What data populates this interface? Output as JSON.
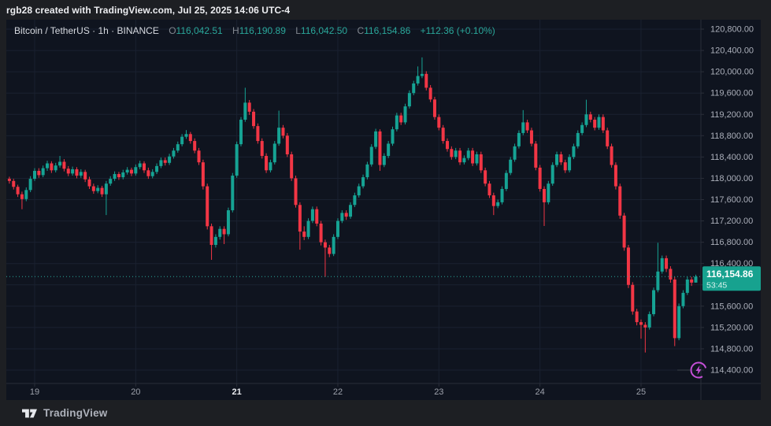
{
  "titlebar": {
    "text": "rgb28 created with TradingView.com, Jul 25, 2025 14:06 UTC-4"
  },
  "legend": {
    "symbol_line": "Bitcoin / TetherUS · 1h · BINANCE",
    "o_label": "O",
    "o_value": "116,042.51",
    "h_label": "H",
    "h_value": "116,190.89",
    "l_label": "L",
    "l_value": "116,042.50",
    "c_label": "C",
    "c_value": "116,154.86",
    "change": "+112.36 (+0.10%)"
  },
  "price_scale": {
    "last_price_label": "116,154.86",
    "countdown": "53:45"
  },
  "footer": {
    "logo_text": "TradingView"
  },
  "colors": {
    "panel_bg": "#0f141f",
    "frame_bg": "#1d1f23",
    "grid": "#1a2130",
    "separator": "#2a2e39",
    "axis_text": "#abafba",
    "day_text": "#9da1ab",
    "day_text_bold": "#e8eaef",
    "up": "#16a394",
    "down": "#f23645",
    "badge": "#17a28f",
    "badge_text": "#ffffff",
    "badge_sub_text": "#d9f3ee",
    "dotted_line": "#2aa89a",
    "lightning": "#c44fd6",
    "title_text": "#edeef1",
    "legend_value": "#2aa79a",
    "logo_text": "#aeb2bb"
  },
  "icons": {
    "lightning": "flash-bolt",
    "logo": "tradingview-mark"
  },
  "chart_data": {
    "type": "candlestick",
    "title": "Bitcoin / TetherUS",
    "exchange": "BINANCE",
    "interval": "1h",
    "timezone": "UTC-4",
    "ohlc_readout": {
      "open": 116042.51,
      "high": 116190.89,
      "low": 116042.5,
      "close": 116154.86
    },
    "change": 112.36,
    "change_pct": 0.1,
    "y_axis": {
      "min": 114400,
      "max": 120800,
      "step": 400
    },
    "x_axis": {
      "day_labels": [
        "19",
        "20",
        "21",
        "22",
        "23",
        "24",
        "25"
      ],
      "bold_label": "21",
      "hours_per_label": 24,
      "first_midnight_index": 6
    },
    "last": {
      "price": 116154.86,
      "countdown": "53:45"
    },
    "legend_position": "top-left",
    "grid": true,
    "candles": [
      [
        117990,
        118030,
        117900,
        117950
      ],
      [
        117950,
        117990,
        117790,
        117840
      ],
      [
        117840,
        117880,
        117650,
        117700
      ],
      [
        117700,
        117750,
        117420,
        117610
      ],
      [
        117610,
        117830,
        117570,
        117780
      ],
      [
        117780,
        118040,
        117740,
        117990
      ],
      [
        117990,
        118190,
        117950,
        118140
      ],
      [
        118140,
        118190,
        118010,
        118060
      ],
      [
        118060,
        118240,
        118020,
        118190
      ],
      [
        118190,
        118330,
        118140,
        118280
      ],
      [
        118280,
        118320,
        118100,
        118150
      ],
      [
        118150,
        118290,
        118110,
        118240
      ],
      [
        118240,
        118420,
        118200,
        118310
      ],
      [
        118310,
        118360,
        118130,
        118180
      ],
      [
        118180,
        118230,
        118040,
        118090
      ],
      [
        118090,
        118220,
        118050,
        118170
      ],
      [
        118170,
        118210,
        118000,
        118050
      ],
      [
        118050,
        118170,
        118010,
        118120
      ],
      [
        118120,
        118160,
        117930,
        117980
      ],
      [
        117980,
        118030,
        117800,
        117850
      ],
      [
        117850,
        117900,
        117710,
        117760
      ],
      [
        117760,
        117870,
        117720,
        117820
      ],
      [
        117820,
        117860,
        117650,
        117700
      ],
      [
        117700,
        117950,
        117310,
        117900
      ],
      [
        117900,
        118040,
        117860,
        117990
      ],
      [
        117990,
        118130,
        117950,
        118080
      ],
      [
        118080,
        118120,
        117970,
        118020
      ],
      [
        118020,
        118160,
        117980,
        118110
      ],
      [
        118110,
        118210,
        118070,
        118160
      ],
      [
        118160,
        118200,
        118040,
        118090
      ],
      [
        118090,
        118260,
        118050,
        118210
      ],
      [
        118210,
        118330,
        118170,
        118280
      ],
      [
        118280,
        118320,
        118100,
        118150
      ],
      [
        118150,
        118200,
        117990,
        118040
      ],
      [
        118040,
        118170,
        118000,
        118120
      ],
      [
        118120,
        118280,
        118080,
        118230
      ],
      [
        118230,
        118390,
        118190,
        118340
      ],
      [
        118340,
        118390,
        118240,
        118290
      ],
      [
        118290,
        118460,
        118250,
        118410
      ],
      [
        118410,
        118570,
        118370,
        118520
      ],
      [
        118520,
        118690,
        118480,
        118640
      ],
      [
        118640,
        118830,
        118600,
        118780
      ],
      [
        118780,
        118905,
        118740,
        118830
      ],
      [
        118830,
        118870,
        118650,
        118700
      ],
      [
        118700,
        118750,
        118470,
        118520
      ],
      [
        118520,
        118570,
        118250,
        118300
      ],
      [
        118300,
        118350,
        117790,
        117850
      ],
      [
        117850,
        117900,
        117040,
        117100
      ],
      [
        117100,
        117150,
        116470,
        116750
      ],
      [
        116750,
        116950,
        116700,
        116900
      ],
      [
        116900,
        117100,
        116850,
        117050
      ],
      [
        117050,
        117100,
        116765,
        116950
      ],
      [
        116950,
        117450,
        116910,
        117400
      ],
      [
        117400,
        118100,
        117360,
        118050
      ],
      [
        118050,
        118690,
        118010,
        118640
      ],
      [
        118640,
        119150,
        118600,
        119100
      ],
      [
        119100,
        119700,
        119060,
        119420
      ],
      [
        119420,
        119470,
        119190,
        119250
      ],
      [
        119250,
        119300,
        118930,
        118980
      ],
      [
        118980,
        119030,
        118650,
        118700
      ],
      [
        118700,
        118750,
        118370,
        118420
      ],
      [
        118420,
        118470,
        118100,
        118150
      ],
      [
        118150,
        118350,
        118110,
        118300
      ],
      [
        118300,
        118700,
        118260,
        118650
      ],
      [
        118650,
        119270,
        118610,
        118950
      ],
      [
        118950,
        119000,
        118750,
        118800
      ],
      [
        118800,
        118850,
        118400,
        118450
      ],
      [
        118450,
        118500,
        117950,
        118000
      ],
      [
        118000,
        118050,
        117450,
        117500
      ],
      [
        117500,
        117550,
        116660,
        117000
      ],
      [
        117000,
        117100,
        116840,
        116900
      ],
      [
        116900,
        117250,
        116860,
        117200
      ],
      [
        117200,
        117470,
        117160,
        117420
      ],
      [
        117420,
        117470,
        117100,
        117150
      ],
      [
        117150,
        117200,
        116740,
        116800
      ],
      [
        116800,
        116850,
        116150,
        116700
      ],
      [
        116700,
        116750,
        116520,
        116580
      ],
      [
        116580,
        116950,
        116540,
        116900
      ],
      [
        116900,
        117250,
        116860,
        117200
      ],
      [
        117200,
        117400,
        117160,
        117350
      ],
      [
        117350,
        117400,
        117220,
        117280
      ],
      [
        117280,
        117550,
        117240,
        117500
      ],
      [
        117500,
        117730,
        117460,
        117680
      ],
      [
        117680,
        117900,
        117640,
        117850
      ],
      [
        117850,
        118070,
        117810,
        118020
      ],
      [
        118020,
        118310,
        117980,
        118260
      ],
      [
        118260,
        118640,
        118220,
        118590
      ],
      [
        118590,
        118930,
        118550,
        118880
      ],
      [
        118880,
        118920,
        118140,
        118250
      ],
      [
        118250,
        118470,
        118210,
        118420
      ],
      [
        118420,
        118700,
        118380,
        118650
      ],
      [
        118650,
        118970,
        118610,
        118920
      ],
      [
        118920,
        119230,
        118880,
        119180
      ],
      [
        119180,
        119230,
        119000,
        119050
      ],
      [
        119050,
        119400,
        119010,
        119350
      ],
      [
        119350,
        119650,
        119310,
        119600
      ],
      [
        119600,
        119830,
        119560,
        119780
      ],
      [
        119780,
        120100,
        119740,
        119920
      ],
      [
        119920,
        120270,
        119880,
        119960
      ],
      [
        119960,
        120010,
        119650,
        119700
      ],
      [
        119700,
        119750,
        119430,
        119480
      ],
      [
        119480,
        119530,
        119100,
        119150
      ],
      [
        119150,
        119200,
        118900,
        118950
      ],
      [
        118950,
        119000,
        118650,
        118700
      ],
      [
        118700,
        118750,
        118500,
        118550
      ],
      [
        118550,
        118600,
        118350,
        118400
      ],
      [
        118400,
        118570,
        118360,
        118520
      ],
      [
        118520,
        118570,
        118250,
        118300
      ],
      [
        118300,
        118430,
        118260,
        118380
      ],
      [
        118380,
        118570,
        118340,
        118520
      ],
      [
        118520,
        118570,
        118230,
        118280
      ],
      [
        118280,
        118500,
        118240,
        118450
      ],
      [
        118450,
        118500,
        118100,
        118150
      ],
      [
        118150,
        118200,
        117850,
        117900
      ],
      [
        117900,
        117950,
        117630,
        117680
      ],
      [
        117680,
        117730,
        117310,
        117480
      ],
      [
        117480,
        117600,
        117440,
        117550
      ],
      [
        117550,
        117850,
        117510,
        117800
      ],
      [
        117800,
        118150,
        117760,
        118100
      ],
      [
        118100,
        118400,
        118060,
        118350
      ],
      [
        118350,
        118650,
        118310,
        118600
      ],
      [
        118600,
        118900,
        118560,
        118850
      ],
      [
        118850,
        119280,
        118810,
        119050
      ],
      [
        119050,
        119100,
        118850,
        118900
      ],
      [
        118900,
        118950,
        118600,
        118650
      ],
      [
        118650,
        118700,
        118150,
        118200
      ],
      [
        118200,
        118250,
        117750,
        117800
      ],
      [
        117800,
        117850,
        117105,
        117550
      ],
      [
        117550,
        117950,
        117510,
        117900
      ],
      [
        117900,
        118300,
        117860,
        118250
      ],
      [
        118250,
        118500,
        118210,
        118450
      ],
      [
        118450,
        118500,
        118250,
        118300
      ],
      [
        118300,
        118350,
        118100,
        118150
      ],
      [
        118150,
        118450,
        118110,
        118400
      ],
      [
        118400,
        118650,
        118360,
        118600
      ],
      [
        118600,
        118900,
        118560,
        118850
      ],
      [
        118850,
        119050,
        118810,
        119000
      ],
      [
        119000,
        119475,
        118960,
        119200
      ],
      [
        119200,
        119250,
        119050,
        119100
      ],
      [
        119100,
        119150,
        118900,
        118950
      ],
      [
        118950,
        119200,
        118910,
        119150
      ],
      [
        119150,
        119200,
        118850,
        118900
      ],
      [
        118900,
        118950,
        118550,
        118600
      ],
      [
        118600,
        118650,
        118200,
        118250
      ],
      [
        118250,
        118300,
        117790,
        117850
      ],
      [
        117850,
        117900,
        117240,
        117300
      ],
      [
        117300,
        117350,
        116640,
        116700
      ],
      [
        116700,
        116750,
        115940,
        116000
      ],
      [
        116000,
        116050,
        115440,
        115500
      ],
      [
        115500,
        115550,
        115240,
        115300
      ],
      [
        115300,
        115350,
        114990,
        115250
      ],
      [
        115250,
        115300,
        114730,
        115200
      ],
      [
        115200,
        115500,
        115160,
        115450
      ],
      [
        115450,
        115950,
        115410,
        115900
      ],
      [
        115900,
        116790,
        115860,
        116250
      ],
      [
        116250,
        116550,
        116210,
        116500
      ],
      [
        116500,
        116550,
        116240,
        116300
      ],
      [
        116300,
        116350,
        116040,
        116100
      ],
      [
        116100,
        116150,
        114850,
        115000
      ],
      [
        115000,
        115650,
        114960,
        115600
      ],
      [
        115600,
        115900,
        115560,
        115850
      ],
      [
        115850,
        116150,
        115810,
        116100
      ],
      [
        116100,
        116150,
        115980,
        116042
      ],
      [
        116042.51,
        116190.89,
        116042.5,
        116154.86
      ]
    ]
  }
}
